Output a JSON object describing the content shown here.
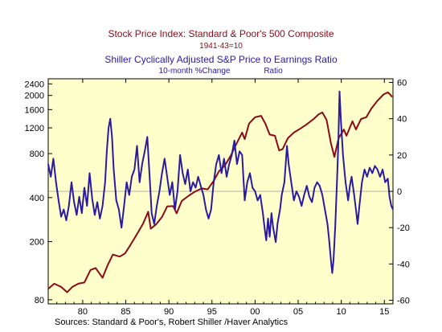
{
  "titles": {
    "series1_title": "Stock Price Index: Standard & Poor's 500 Composite",
    "series1_subtitle": "1941-43=10",
    "series2_title": "Shiller Cyclically Adjusted S&P Price to Earnings Ratio",
    "series2_subtitle_units": "10-month %Change",
    "series2_subtitle_name": "Ratio"
  },
  "source": "Sources:  Standard & Poor's, Robert Shiller /Haver Analytics",
  "colors": {
    "sp500": "#8b0a1a",
    "cape": "#2a1aa0",
    "plot_bg": "#ffffcc",
    "title1": "#8b0a1a",
    "title2": "#2a1aa0"
  },
  "chart_data": {
    "type": "line",
    "x_axis": {
      "range": [
        1976,
        2016
      ],
      "ticks": [
        1980,
        1985,
        1990,
        1995,
        2000,
        2005,
        2010,
        2015
      ],
      "tick_labels": [
        "80",
        "85",
        "90",
        "95",
        "00",
        "05",
        "10",
        "15"
      ]
    },
    "y_left": {
      "scale": "log",
      "range": [
        75,
        2600
      ],
      "ticks": [
        80,
        200,
        400,
        800,
        1200,
        1600,
        2000,
        2400
      ],
      "tick_labels": [
        "80",
        "200",
        "400",
        "800",
        "1200",
        "1600",
        "2000",
        "2400"
      ]
    },
    "y_right": {
      "scale": "linear",
      "range": [
        -62,
        62
      ],
      "ticks": [
        -60,
        -40,
        -20,
        0,
        20,
        40,
        60
      ],
      "tick_labels": [
        "-60",
        "-40",
        "-20",
        "0",
        "20",
        "40",
        "60"
      ]
    },
    "series": [
      {
        "name": "Stock Price Index: Standard & Poor's 500 Composite",
        "axis": "left",
        "points": [
          [
            1976.0,
            95
          ],
          [
            1976.7,
            103
          ],
          [
            1977.5,
            98
          ],
          [
            1978.2,
            90
          ],
          [
            1978.8,
            98
          ],
          [
            1979.5,
            103
          ],
          [
            1980.2,
            105
          ],
          [
            1980.9,
            128
          ],
          [
            1981.5,
            132
          ],
          [
            1982.3,
            113
          ],
          [
            1982.9,
            138
          ],
          [
            1983.5,
            163
          ],
          [
            1984.3,
            158
          ],
          [
            1984.9,
            166
          ],
          [
            1985.5,
            188
          ],
          [
            1986.3,
            225
          ],
          [
            1987.0,
            265
          ],
          [
            1987.6,
            320
          ],
          [
            1987.9,
            245
          ],
          [
            1988.5,
            262
          ],
          [
            1989.2,
            295
          ],
          [
            1989.8,
            348
          ],
          [
            1990.5,
            350
          ],
          [
            1990.9,
            312
          ],
          [
            1991.5,
            380
          ],
          [
            1992.3,
            412
          ],
          [
            1993.0,
            438
          ],
          [
            1993.8,
            462
          ],
          [
            1994.5,
            455
          ],
          [
            1995.2,
            520
          ],
          [
            1995.8,
            605
          ],
          [
            1996.5,
            665
          ],
          [
            1997.2,
            780
          ],
          [
            1997.9,
            950
          ],
          [
            1998.5,
            1115
          ],
          [
            1998.8,
            1005
          ],
          [
            1999.3,
            1285
          ],
          [
            2000.0,
            1420
          ],
          [
            2000.7,
            1450
          ],
          [
            2001.2,
            1280
          ],
          [
            2001.7,
            1080
          ],
          [
            2002.3,
            1060
          ],
          [
            2002.8,
            840
          ],
          [
            2003.2,
            860
          ],
          [
            2003.8,
            1020
          ],
          [
            2004.5,
            1115
          ],
          [
            2005.3,
            1190
          ],
          [
            2006.0,
            1270
          ],
          [
            2006.8,
            1380
          ],
          [
            2007.4,
            1490
          ],
          [
            2007.8,
            1530
          ],
          [
            2008.3,
            1360
          ],
          [
            2008.8,
            940
          ],
          [
            2009.2,
            760
          ],
          [
            2009.7,
            1020
          ],
          [
            2010.3,
            1170
          ],
          [
            2010.6,
            1060
          ],
          [
            2011.3,
            1330
          ],
          [
            2011.7,
            1170
          ],
          [
            2012.3,
            1380
          ],
          [
            2012.9,
            1420
          ],
          [
            2013.5,
            1630
          ],
          [
            2014.2,
            1840
          ],
          [
            2014.9,
            2030
          ],
          [
            2015.4,
            2100
          ],
          [
            2015.7,
            2020
          ],
          [
            2015.9,
            1950
          ]
        ]
      },
      {
        "name": "Shiller Cyclically Adjusted S&P Price to Earnings Ratio",
        "axis": "right",
        "points": [
          [
            1976.0,
            15
          ],
          [
            1976.3,
            8
          ],
          [
            1976.6,
            18
          ],
          [
            1976.9,
            5
          ],
          [
            1977.2,
            -5
          ],
          [
            1977.5,
            -14
          ],
          [
            1977.8,
            -10
          ],
          [
            1978.1,
            -16
          ],
          [
            1978.4,
            -8
          ],
          [
            1978.7,
            5
          ],
          [
            1979.0,
            -6
          ],
          [
            1979.3,
            -13
          ],
          [
            1979.6,
            -3
          ],
          [
            1979.9,
            -12
          ],
          [
            1980.2,
            2
          ],
          [
            1980.5,
            -8
          ],
          [
            1980.8,
            10
          ],
          [
            1981.1,
            -4
          ],
          [
            1981.4,
            -13
          ],
          [
            1981.7,
            -6
          ],
          [
            1982.0,
            -15
          ],
          [
            1982.3,
            -8
          ],
          [
            1982.6,
            5
          ],
          [
            1982.8,
            22
          ],
          [
            1983.0,
            35
          ],
          [
            1983.2,
            40
          ],
          [
            1983.4,
            30
          ],
          [
            1983.6,
            12
          ],
          [
            1983.9,
            -5
          ],
          [
            1984.2,
            -10
          ],
          [
            1984.5,
            -20
          ],
          [
            1984.8,
            -8
          ],
          [
            1985.1,
            5
          ],
          [
            1985.4,
            -2
          ],
          [
            1985.7,
            8
          ],
          [
            1986.0,
            12
          ],
          [
            1986.3,
            25
          ],
          [
            1986.6,
            5
          ],
          [
            1986.9,
            15
          ],
          [
            1987.2,
            22
          ],
          [
            1987.5,
            30
          ],
          [
            1987.8,
            5
          ],
          [
            1988.0,
            -12
          ],
          [
            1988.3,
            -18
          ],
          [
            1988.6,
            -8
          ],
          [
            1988.9,
            0
          ],
          [
            1989.2,
            10
          ],
          [
            1989.5,
            18
          ],
          [
            1989.8,
            8
          ],
          [
            1990.1,
            -2
          ],
          [
            1990.4,
            5
          ],
          [
            1990.7,
            -10
          ],
          [
            1991.0,
            0
          ],
          [
            1991.3,
            20
          ],
          [
            1991.6,
            10
          ],
          [
            1991.9,
            4
          ],
          [
            1992.2,
            12
          ],
          [
            1992.5,
            0
          ],
          [
            1992.8,
            5
          ],
          [
            1993.1,
            2
          ],
          [
            1993.4,
            8
          ],
          [
            1993.7,
            3
          ],
          [
            1994.0,
            -2
          ],
          [
            1994.3,
            -10
          ],
          [
            1994.6,
            -15
          ],
          [
            1994.9,
            -10
          ],
          [
            1995.2,
            5
          ],
          [
            1995.5,
            15
          ],
          [
            1995.8,
            20
          ],
          [
            1996.1,
            10
          ],
          [
            1996.4,
            18
          ],
          [
            1996.7,
            8
          ],
          [
            1997.0,
            15
          ],
          [
            1997.3,
            20
          ],
          [
            1997.6,
            28
          ],
          [
            1997.9,
            15
          ],
          [
            1998.2,
            22
          ],
          [
            1998.5,
            20
          ],
          [
            1998.8,
            -5
          ],
          [
            1999.1,
            5
          ],
          [
            1999.4,
            10
          ],
          [
            1999.7,
            2
          ],
          [
            2000.0,
            0
          ],
          [
            2000.3,
            -5
          ],
          [
            2000.6,
            -2
          ],
          [
            2000.9,
            -12
          ],
          [
            2001.1,
            -20
          ],
          [
            2001.3,
            -27
          ],
          [
            2001.5,
            -15
          ],
          [
            2001.7,
            -25
          ],
          [
            2001.9,
            -12
          ],
          [
            2002.1,
            -20
          ],
          [
            2002.4,
            -28
          ],
          [
            2002.6,
            -18
          ],
          [
            2002.9,
            -10
          ],
          [
            2003.1,
            -2
          ],
          [
            2003.4,
            5
          ],
          [
            2003.7,
            25
          ],
          [
            2003.9,
            15
          ],
          [
            2004.2,
            5
          ],
          [
            2004.5,
            -5
          ],
          [
            2004.8,
            0
          ],
          [
            2005.1,
            -3
          ],
          [
            2005.4,
            -8
          ],
          [
            2005.7,
            -2
          ],
          [
            2006.0,
            3
          ],
          [
            2006.3,
            -3
          ],
          [
            2006.6,
            -6
          ],
          [
            2006.9,
            2
          ],
          [
            2007.2,
            5
          ],
          [
            2007.5,
            3
          ],
          [
            2007.8,
            -2
          ],
          [
            2008.1,
            -10
          ],
          [
            2008.4,
            -18
          ],
          [
            2008.6,
            -27
          ],
          [
            2008.8,
            -38
          ],
          [
            2008.95,
            -45
          ],
          [
            2009.1,
            -38
          ],
          [
            2009.3,
            -20
          ],
          [
            2009.5,
            5
          ],
          [
            2009.65,
            25
          ],
          [
            2009.8,
            55
          ],
          [
            2009.95,
            40
          ],
          [
            2010.2,
            20
          ],
          [
            2010.5,
            5
          ],
          [
            2010.8,
            -5
          ],
          [
            2011.0,
            3
          ],
          [
            2011.2,
            8
          ],
          [
            2011.5,
            -2
          ],
          [
            2011.7,
            -10
          ],
          [
            2011.9,
            -18
          ],
          [
            2012.1,
            -8
          ],
          [
            2012.4,
            5
          ],
          [
            2012.7,
            12
          ],
          [
            2013.0,
            8
          ],
          [
            2013.3,
            13
          ],
          [
            2013.6,
            10
          ],
          [
            2013.9,
            14
          ],
          [
            2014.2,
            12
          ],
          [
            2014.5,
            8
          ],
          [
            2014.8,
            12
          ],
          [
            2015.1,
            5
          ],
          [
            2015.4,
            7
          ],
          [
            2015.6,
            -3
          ],
          [
            2015.8,
            -8
          ],
          [
            2016.0,
            -10
          ]
        ]
      }
    ]
  }
}
